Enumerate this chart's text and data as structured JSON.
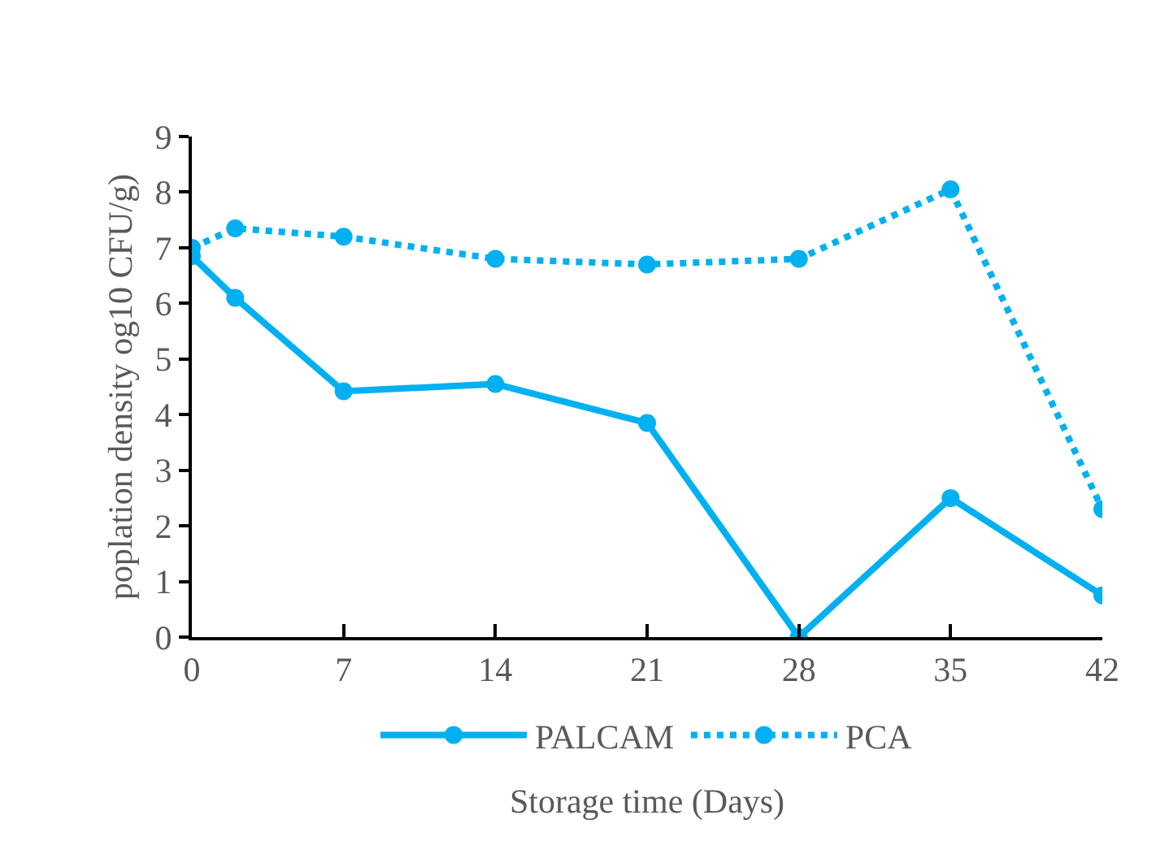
{
  "chart_data": {
    "type": "line",
    "xlabel": "Storage time (Days)",
    "ylabel": "poplation density og10 CFU/g)",
    "x": [
      0,
      2,
      7,
      14,
      21,
      28,
      35,
      42
    ],
    "series": [
      {
        "name": "PALCAM",
        "color": "#00b0f0",
        "line_style": "solid",
        "values": [
          6.85,
          6.1,
          4.42,
          4.55,
          3.85,
          0.0,
          2.5,
          0.75
        ]
      },
      {
        "name": "PCA",
        "color": "#00b0f0",
        "line_style": "dotted",
        "values": [
          7.0,
          7.35,
          7.2,
          6.8,
          6.7,
          6.8,
          8.05,
          2.3
        ]
      }
    ],
    "xlim": [
      0,
      42
    ],
    "xticks": [
      0,
      7,
      14,
      21,
      28,
      35,
      42
    ],
    "ylim": [
      0,
      9
    ],
    "yticks": [
      0,
      1,
      2,
      3,
      4,
      5,
      6,
      7,
      8,
      9
    ],
    "grid": false,
    "legend": "bottom",
    "marker": "circle"
  }
}
